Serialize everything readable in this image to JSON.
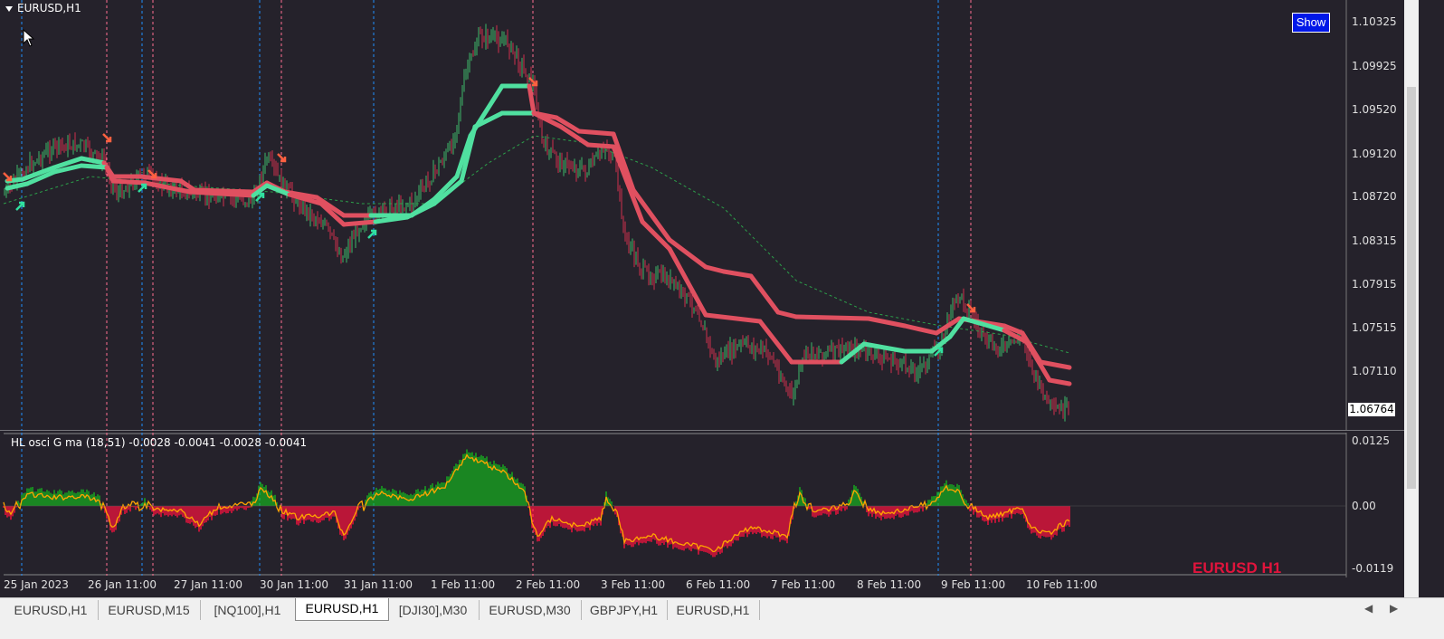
{
  "window": {
    "symbol": "EURUSD,H1",
    "show_button": "Show",
    "indicator_label": "HL osci G ma (18,51) -0.0028 -0.0041 -0.0028 -0.0041",
    "current_price": "1.06764",
    "watermark": "EURUSD H1"
  },
  "price_axis": [
    "1.10325",
    "1.09925",
    "1.09520",
    "1.09120",
    "1.08720",
    "1.08315",
    "1.07915",
    "1.07515",
    "1.07110"
  ],
  "osc_axis": [
    "0.0125",
    "0.00",
    "-0.0119"
  ],
  "time_axis": [
    "25 Jan 2023",
    "26 Jan 11:00",
    "27 Jan 11:00",
    "30 Jan 11:00",
    "31 Jan 11:00",
    "1 Feb 11:00",
    "2 Feb 11:00",
    "3 Feb 11:00",
    "6 Feb 11:00",
    "7 Feb 11:00",
    "8 Feb 11:00",
    "9 Feb 11:00",
    "10 Feb 11:00"
  ],
  "tabs": [
    {
      "label": "EURUSD,H1",
      "active": false
    },
    {
      "label": "EURUSD,M15",
      "active": false
    },
    {
      "label": "[NQ100],H1",
      "active": false
    },
    {
      "label": "EURUSD,H1",
      "active": true
    },
    {
      "label": "[DJI30],M30",
      "active": false
    },
    {
      "label": "EURUSD,M30",
      "active": false
    },
    {
      "label": "GBPJPY,H1",
      "active": false
    },
    {
      "label": "EURUSD,H1",
      "active": false
    }
  ],
  "colors": {
    "background": "#25222b",
    "bull_candle": "#3db86a",
    "bear_candle": "#d0304e",
    "band_up": "#50e0a0",
    "band_down": "#e05060",
    "osc_positive": "#18a020",
    "osc_negative": "#e0143c",
    "osc_line": "#ffa500",
    "vline_blue": "#1e90ff",
    "vline_pink": "#ff6f91"
  },
  "icons": {
    "arrow_up": "arrow-up-icon",
    "arrow_down": "arrow-down-icon",
    "cursor": "cursor-icon"
  }
}
